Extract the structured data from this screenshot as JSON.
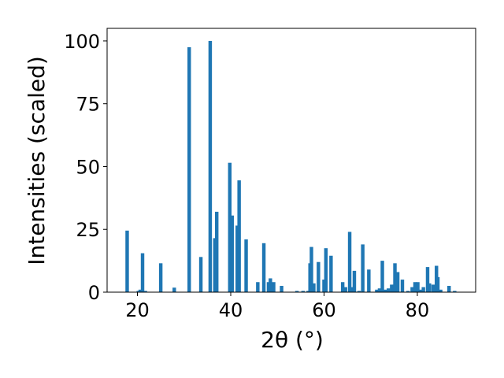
{
  "chart_data": {
    "type": "bar",
    "xlabel": "2θ (°)",
    "ylabel": "Intensities (scaled)",
    "xlim": [
      13.5,
      92.5
    ],
    "ylim": [
      0,
      105
    ],
    "bar_color": "#1f77b4",
    "bar_width": 0.75,
    "x_ticks": [
      20,
      40,
      60,
      80
    ],
    "y_ticks": [
      0,
      25,
      50,
      75,
      100
    ],
    "grid": false,
    "x": [
      17.8,
      20.2,
      20.6,
      21.1,
      21.7,
      25.0,
      27.9,
      31.1,
      33.6,
      35.6,
      36.6,
      37.0,
      39.8,
      40.3,
      41.4,
      41.8,
      43.3,
      45.8,
      47.1,
      48.1,
      48.5,
      49.2,
      50.9,
      54.2,
      55.5,
      56.6,
      57.0,
      57.3,
      57.8,
      58.8,
      60.0,
      60.4,
      61.5,
      64.0,
      64.6,
      65.5,
      65.8,
      66.5,
      67.5,
      68.3,
      69.6,
      71.3,
      71.9,
      72.5,
      73.1,
      73.8,
      74.5,
      75.0,
      75.2,
      75.8,
      76.8,
      78.0,
      78.9,
      79.5,
      80.1,
      80.8,
      81.3,
      82.2,
      82.6,
      83.4,
      84.1,
      84.4,
      85.0,
      86.8,
      88.0
    ],
    "values": [
      24.5,
      0.5,
      1.0,
      15.5,
      0.5,
      11.5,
      1.8,
      97.5,
      14.0,
      100.0,
      21.5,
      32.0,
      51.5,
      30.5,
      26.5,
      44.5,
      21.0,
      4.0,
      19.5,
      4.0,
      5.5,
      4.0,
      2.5,
      0.5,
      0.5,
      0.5,
      11.5,
      18.0,
      3.5,
      12.0,
      5.0,
      17.5,
      14.5,
      4.0,
      2.0,
      24.0,
      2.0,
      8.5,
      0.5,
      19.0,
      9.0,
      1.0,
      1.5,
      12.5,
      1.0,
      1.5,
      3.0,
      3.0,
      11.5,
      8.0,
      5.0,
      0.5,
      2.0,
      4.0,
      4.0,
      1.0,
      2.0,
      10.0,
      3.5,
      3.0,
      10.5,
      6.0,
      1.0,
      2.5,
      0.5
    ]
  }
}
